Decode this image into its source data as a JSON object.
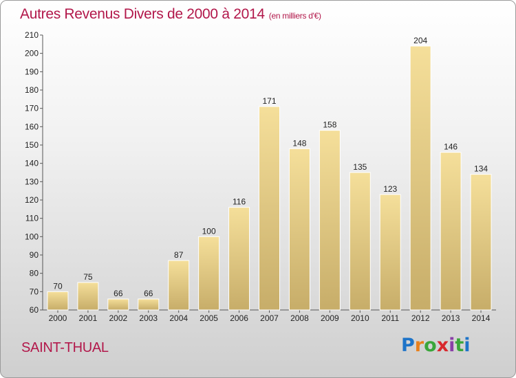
{
  "header": {
    "title": "Autres Revenus Divers de 2000 à 2014",
    "unit": "(en milliers d'€)"
  },
  "footer": {
    "place": "SAINT-THUAL",
    "logo_letters": [
      "P",
      "r",
      "o",
      "x",
      "i",
      "t",
      "i"
    ],
    "logo_colors": [
      "#1e74c8",
      "#e8801c",
      "#3aa63a",
      "#d8282d",
      "#8a3ea8",
      "#3aa63a",
      "#1e74c8"
    ]
  },
  "chart_data": {
    "type": "bar",
    "title": "Autres Revenus Divers de 2000 à 2014",
    "subtitle": "(en milliers d'€)",
    "categories": [
      "2000",
      "2001",
      "2002",
      "2003",
      "2004",
      "2005",
      "2006",
      "2007",
      "2008",
      "2009",
      "2010",
      "2011",
      "2012",
      "2013",
      "2014"
    ],
    "values": [
      70,
      75,
      66,
      66,
      87,
      100,
      116,
      171,
      148,
      158,
      135,
      123,
      204,
      146,
      134
    ],
    "ylim": [
      60,
      210
    ],
    "yticks": [
      60,
      70,
      80,
      90,
      100,
      110,
      120,
      130,
      140,
      150,
      160,
      170,
      180,
      190,
      200,
      210
    ],
    "grid": false,
    "bar_color_top": "#f5df9a",
    "bar_color_bottom": "#c7ad69"
  }
}
